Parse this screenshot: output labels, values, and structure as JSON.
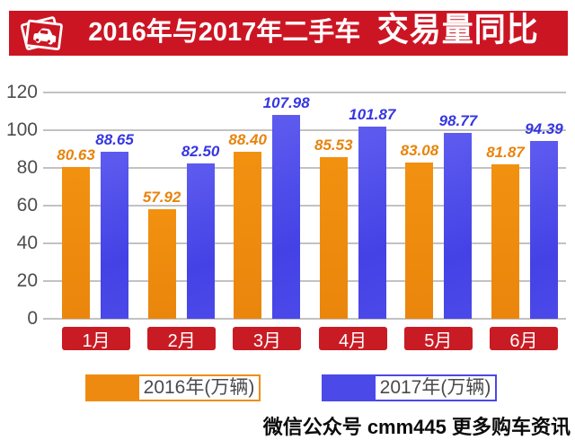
{
  "header": {
    "title_regular": "2016年与2017年二手车",
    "title_heavy": "交易量同比",
    "banner_color": "#CC1523",
    "icon": "car-photos-icon"
  },
  "chart_data": {
    "type": "bar",
    "title": "2016年与2017年二手车 交易量同比",
    "categories": [
      "1月",
      "2月",
      "3月",
      "4月",
      "5月",
      "6月"
    ],
    "series": [
      {
        "name": "2016年(万辆)",
        "color": "#EE8A0F",
        "label_color": "#E8830B",
        "values": [
          80.63,
          57.92,
          88.4,
          85.53,
          83.08,
          81.87
        ]
      },
      {
        "name": "2017年(万辆)",
        "color": "#4B49E8",
        "label_color": "#3636E2",
        "values": [
          88.65,
          82.5,
          107.98,
          101.87,
          98.77,
          94.39
        ]
      }
    ],
    "ylabel": "",
    "xlabel": "",
    "ylim": [
      0,
      120
    ],
    "yticks": [
      0,
      20,
      40,
      60,
      80,
      100,
      120
    ],
    "grid": true,
    "legend_position": "bottom",
    "category_label_bg": "#C91B24",
    "category_label_color": "#FFFFFF"
  },
  "legend": [
    {
      "label": "2016年(万辆)",
      "color": "#EE8A0F"
    },
    {
      "label": "2017年(万辆)",
      "color": "#4B49E8"
    }
  ],
  "footer": {
    "text": "微信公众号 cmm445 更多购车资讯"
  }
}
